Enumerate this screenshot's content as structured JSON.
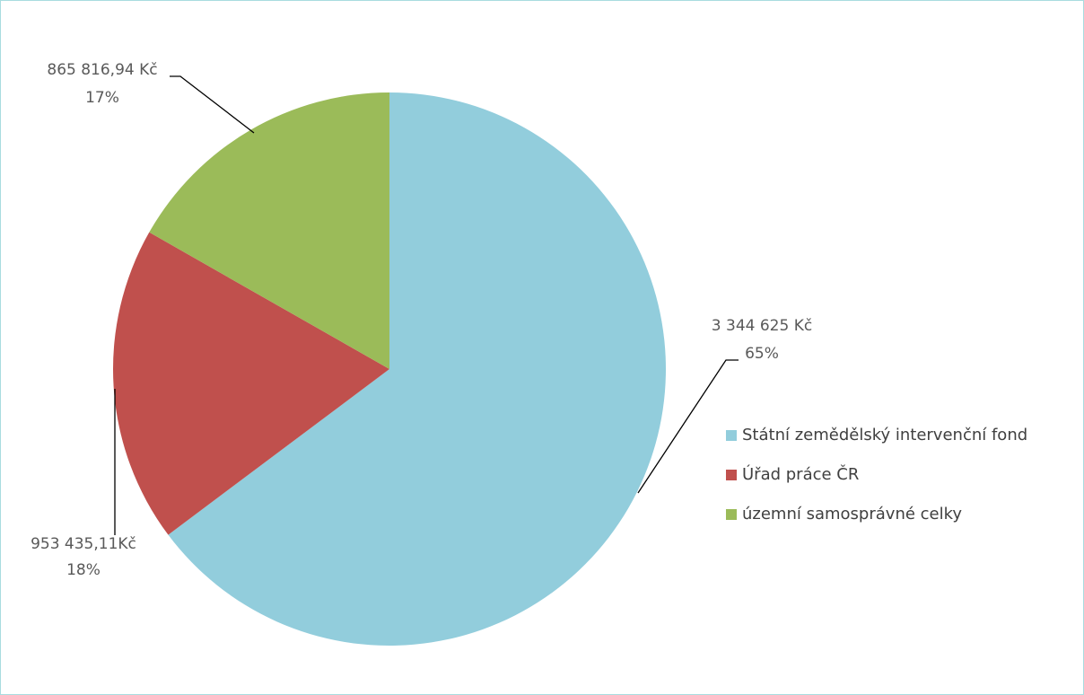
{
  "chart_data": {
    "type": "pie",
    "categories": [
      "Státní zemědělský intervenční fond",
      "Úřad práce ČR",
      "územní samosprávné celky"
    ],
    "values": [
      3344625,
      953435.11,
      865816.94
    ],
    "value_labels": [
      "3 344 625 Kč",
      "953 435,11Kč",
      "865 816,94 Kč"
    ],
    "percent_labels": [
      "65%",
      "18%",
      "17%"
    ],
    "colors": [
      "#92cddc",
      "#c0504d",
      "#9bbb59"
    ],
    "legend": "right"
  }
}
